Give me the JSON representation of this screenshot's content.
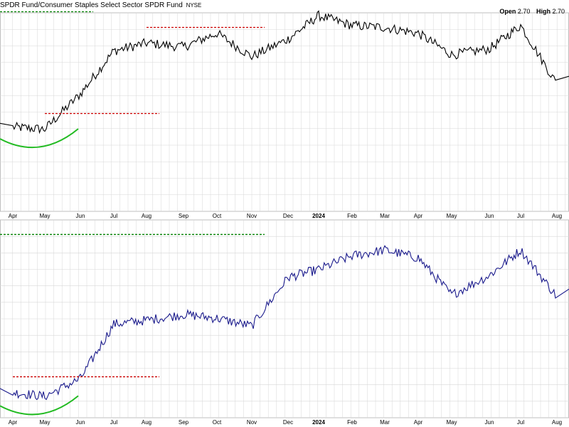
{
  "title": "SPDR Fund/Consumer Staples Select Sector SPDR Fund",
  "exchange": "NYSE",
  "ohlc": {
    "open_label": "Open",
    "open_value": "2.70",
    "high_label": "High",
    "high_value": "2.70"
  },
  "colors": {
    "upper_line": "#000000",
    "lower_line": "#1a1a8c",
    "resistance": "#cc0000",
    "support": "#008000",
    "bowl": "#22bb22",
    "grid": "#d7d7d7"
  },
  "chart_data": [
    {
      "type": "line",
      "x_tick_labels": [
        "Apr",
        "May",
        "Jun",
        "Jul",
        "Aug",
        "Sep",
        "Oct",
        "Nov",
        "Dec",
        "2024",
        "Feb",
        "Mar",
        "Apr",
        "May",
        "Jun",
        "Jul",
        "Aug"
      ],
      "series": [
        {
          "x": [
            "Apr",
            "May",
            "Jun",
            "Jul",
            "Aug",
            "Sep",
            "Oct",
            "Nov",
            "Dec",
            "2024",
            "Feb",
            "Mar",
            "Apr",
            "May",
            "Jun",
            "Jul",
            "Aug"
          ],
          "values": [
            0.43,
            0.42,
            0.6,
            0.82,
            0.86,
            0.84,
            0.91,
            0.79,
            0.88,
            1.0,
            0.95,
            0.94,
            0.91,
            0.8,
            0.83,
            0.95,
            0.65
          ]
        }
      ],
      "annotations": [
        {
          "kind": "horizontal-line",
          "style": "dotted",
          "color": "green",
          "from": "Mar",
          "to": "Jun"
        },
        {
          "kind": "horizontal-line",
          "style": "dotted",
          "color": "red",
          "from": "Aug",
          "to": "Nov"
        },
        {
          "kind": "horizontal-line",
          "style": "dotted",
          "color": "red",
          "from": "May",
          "to": "Aug"
        },
        {
          "kind": "curve",
          "color": "green",
          "from": "Mar",
          "to": "Jun"
        }
      ]
    },
    {
      "type": "line",
      "x_tick_labels": [
        "Apr",
        "May",
        "Jun",
        "Jul",
        "Aug",
        "Sep",
        "Oct",
        "Nov",
        "Dec",
        "2024",
        "Feb",
        "Mar",
        "Apr",
        "May",
        "Jun",
        "Jul",
        "Aug"
      ],
      "series": [
        {
          "x": [
            "Apr",
            "May",
            "Jun",
            "Jul",
            "Aug",
            "Sep",
            "Oct",
            "Nov",
            "Dec",
            "2024",
            "Feb",
            "Mar",
            "Apr",
            "May",
            "Jun",
            "Jul",
            "Aug"
          ],
          "values": [
            0.13,
            0.11,
            0.2,
            0.48,
            0.5,
            0.53,
            0.51,
            0.47,
            0.72,
            0.76,
            0.83,
            0.86,
            0.82,
            0.63,
            0.73,
            0.86,
            0.62
          ]
        }
      ],
      "annotations": [
        {
          "kind": "horizontal-line",
          "style": "dotted",
          "color": "green",
          "from": "Mar",
          "to": "Nov"
        },
        {
          "kind": "horizontal-line",
          "style": "dotted",
          "color": "red",
          "from": "Apr",
          "to": "Aug"
        },
        {
          "kind": "curve",
          "color": "green",
          "from": "Mar",
          "to": "Jun"
        }
      ]
    }
  ]
}
